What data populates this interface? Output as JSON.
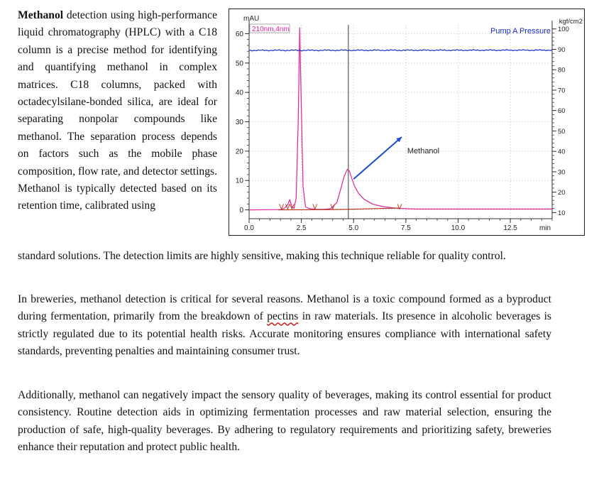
{
  "document": {
    "intro": {
      "lead": "Methanol",
      "text": "detection using high-performance liquid chromatography (HPLC) with a C18 column is a precise method for identifying and quantifying methanol in complex matrices. C18 columns, packed with octadecylsilane-bonded silica, are ideal for separating nonpolar compounds like methanol. The separation process depends on factors such as the mobile phase composition, flow rate, and detector settings. Methanol is typically detected based on its retention time, calibrated using",
      "continuation": "standard solutions. The detection limits are highly sensitive, making this technique reliable for quality control."
    },
    "paragraph2": {
      "before": "In breweries, methanol detection is critical for several reasons. Methanol is a toxic compound formed as a byproduct during fermentation, primarily from the breakdown of ",
      "flagged_word": "pectins",
      "after": " in raw materials. Its presence in alcoholic beverages is strictly regulated due to its potential health risks. Accurate monitoring ensures compliance with international safety standards, preventing penalties and maintaining consumer trust."
    },
    "paragraph3": "Additionally, methanol can negatively impact the sensory quality of beverages, making its control essential for product consistency. Routine detection aids in optimizing fermentation processes and raw material selection, ensuring the production of safe, high-quality beverages. By adhering to regulatory requirements and prioritizing safety, breweries enhance their reputation and protect public health."
  },
  "chart_data": {
    "type": "line",
    "title": "",
    "detector_label": "210nm,4nm",
    "pressure_label": "Pump A Pressure",
    "annotation": "Methanol",
    "xlabel": "min",
    "ylabel_left": "mAU",
    "ylabel_right": "kgf/cm2",
    "xlim": [
      0.0,
      14.5
    ],
    "ylim_left": [
      -3,
      63
    ],
    "ylim_right": [
      7,
      102
    ],
    "x_ticks": [
      "0.0",
      "2.5",
      "5.0",
      "7.5",
      "10.0",
      "12.5"
    ],
    "x_tick_values": [
      0.0,
      2.5,
      5.0,
      7.5,
      10.0,
      12.5
    ],
    "y_ticks_left": [
      "0",
      "10",
      "20",
      "30",
      "40",
      "50",
      "60"
    ],
    "y_tick_values_left": [
      0,
      10,
      20,
      30,
      40,
      50,
      60
    ],
    "y_ticks_right": [
      "10",
      "20",
      "30",
      "40",
      "50",
      "60",
      "70",
      "80",
      "90",
      "100"
    ],
    "y_tick_values_right": [
      10,
      20,
      30,
      40,
      50,
      60,
      70,
      80,
      90,
      100
    ],
    "cursor_x": 4.75,
    "series": [
      {
        "name": "210nm,4nm",
        "color": "#e0249c",
        "x": [
          0.0,
          1.5,
          1.7,
          1.85,
          1.95,
          2.05,
          2.15,
          2.25,
          2.35,
          2.42,
          2.5,
          2.58,
          2.7,
          2.9,
          3.2,
          3.6,
          3.9,
          4.2,
          4.4,
          4.55,
          4.7,
          4.8,
          4.9,
          5.05,
          5.25,
          5.5,
          5.9,
          6.4,
          7.0,
          7.5,
          8.0,
          14.5
        ],
        "values": [
          0,
          0.1,
          0.6,
          1.8,
          3.5,
          1.0,
          0.5,
          4.0,
          30.0,
          62.0,
          35.0,
          8.0,
          1.0,
          0.4,
          0.2,
          0.2,
          0.4,
          2.5,
          7.5,
          11.5,
          13.8,
          13.2,
          11.0,
          8.0,
          5.5,
          3.6,
          2.0,
          1.1,
          0.6,
          0.4,
          0.3,
          0.3
        ]
      },
      {
        "name": "Pump A Pressure",
        "color": "#1a2bd0",
        "axis": "right",
        "x": [
          0.0,
          14.5
        ],
        "values": [
          89.5,
          89.6
        ]
      },
      {
        "name": "Baseline",
        "color": "#b03010",
        "x": [
          1.4,
          4.0,
          7.2
        ],
        "values": [
          0.0,
          0.1,
          0.6
        ]
      }
    ],
    "integration_marks_x": [
      1.55,
      1.85,
      2.05,
      3.15,
      4.0,
      7.2
    ]
  }
}
